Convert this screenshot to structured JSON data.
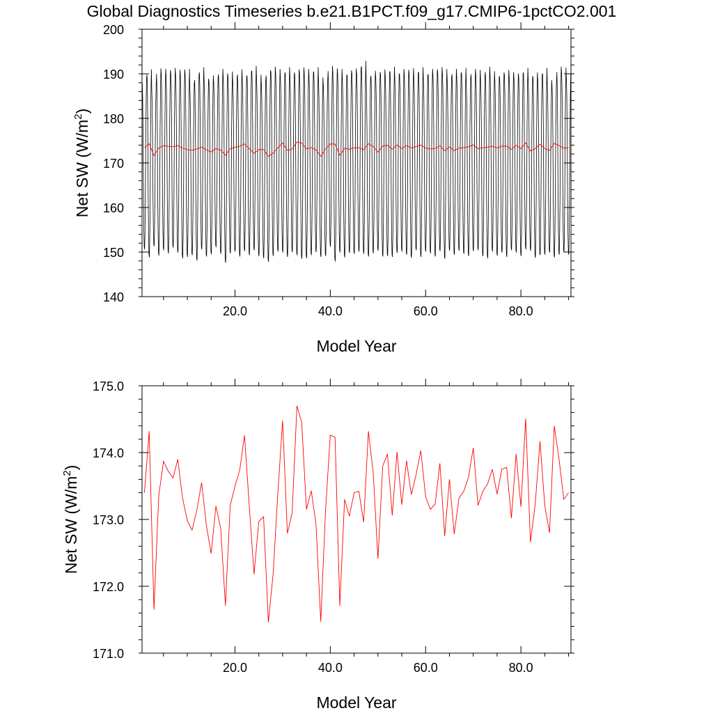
{
  "title": "Global Diagnostics Timeseries b.e21.B1PCT.f09_g17.CMIP6-1pctCO2.001",
  "colors": {
    "monthly": "#000000",
    "annual": "#ff0000",
    "axis": "#000000"
  },
  "chart_data": [
    {
      "type": "line",
      "xlabel": "Model Year",
      "ylabel": "Net SW (W/m",
      "ylabel_sup": "2",
      "ylabel_close": ")",
      "xlim": [
        0.5,
        90.5
      ],
      "ylim": [
        140,
        200
      ],
      "xticks": [
        20,
        40,
        60,
        80
      ],
      "xtick_labels": [
        "20.0",
        "40.0",
        "60.0",
        "80.0"
      ],
      "yticks": [
        140,
        150,
        160,
        170,
        180,
        190,
        200
      ],
      "ytick_labels": [
        "140",
        "150",
        "160",
        "170",
        "180",
        "190",
        "200"
      ],
      "grid": false,
      "series": [
        {
          "key": "monthly",
          "monthly_max_by_year": [
            189.2,
            191.0,
            187.5,
            191.2,
            191.1,
            190.8,
            191.3,
            190.9,
            191.0,
            191.1,
            187.8,
            189.8,
            191.5,
            188.9,
            189.6,
            189.2,
            191.1,
            190.1,
            190.5,
            189.2,
            191.0,
            189.6,
            190.6,
            191.8,
            189.8,
            188.7,
            190.8,
            191.6,
            191.1,
            190.0,
            191.5,
            190.3,
            191.0,
            191.4,
            191.1,
            190.5,
            191.5,
            189.2,
            188.5,
            191.8,
            191.2,
            191.1,
            189.8,
            190.8,
            191.2,
            191.2,
            192.9,
            189.3,
            190.7,
            190.4,
            191.0,
            190.5,
            191.6,
            190.0,
            191.1,
            190.9,
            191.3,
            190.3,
            191.5,
            189.7,
            191.1,
            191.0,
            191.5,
            191.1,
            189.3,
            191.1,
            190.3,
            191.3,
            189.0,
            191.1,
            190.9,
            189.6,
            191.6,
            190.6,
            189.5,
            190.3,
            190.9,
            190.4,
            190.1,
            190.3,
            191.3,
            189.5,
            190.3,
            189.8,
            191.3,
            188.6,
            188.1,
            191.6,
            191.4,
            189.9
          ],
          "monthly_min_by_year": [
            150.6,
            148.8,
            151.3,
            149.2,
            150.4,
            149.7,
            151.0,
            149.9,
            148.6,
            148.9,
            149.3,
            148.1,
            150.6,
            149.0,
            149.5,
            151.1,
            149.6,
            147.6,
            149.7,
            150.1,
            149.0,
            150.2,
            149.3,
            150.4,
            149.1,
            148.6,
            147.8,
            149.1,
            150.1,
            149.9,
            148.9,
            150.0,
            149.3,
            148.5,
            148.6,
            149.3,
            150.0,
            148.9,
            149.1,
            151.2,
            147.9,
            149.9,
            148.8,
            149.8,
            149.6,
            150.1,
            149.6,
            149.0,
            149.7,
            150.3,
            149.0,
            149.1,
            148.9,
            149.8,
            150.1,
            149.4,
            148.7,
            150.4,
            148.9,
            150.1,
            149.7,
            149.0,
            150.2,
            148.5,
            150.3,
            149.4,
            150.3,
            149.6,
            149.1,
            150.2,
            150.4,
            149.1,
            148.6,
            150.1,
            149.2,
            149.9,
            148.9,
            150.4,
            149.9,
            149.1,
            150.6,
            150.3,
            148.7,
            149.3,
            149.4,
            149.9,
            148.8,
            149.4,
            149.9,
            149.4
          ]
        },
        {
          "key": "annual",
          "ref": "annual_values"
        }
      ]
    },
    {
      "type": "line",
      "xlabel": "Model Year",
      "ylabel": "Net SW (W/m",
      "ylabel_sup": "2",
      "ylabel_close": ")",
      "xlim": [
        0.5,
        90.5
      ],
      "ylim": [
        171.0,
        175.0
      ],
      "xticks": [
        20,
        40,
        60,
        80
      ],
      "xtick_labels": [
        "20.0",
        "40.0",
        "60.0",
        "80.0"
      ],
      "yticks": [
        171.0,
        172.0,
        173.0,
        174.0,
        175.0
      ],
      "ytick_labels": [
        "171.0",
        "172.0",
        "173.0",
        "174.0",
        "175.0"
      ],
      "grid": false,
      "series": [
        {
          "key": "annual",
          "ref": "annual_values"
        }
      ]
    }
  ],
  "annual_values": {
    "x": [
      1,
      2,
      3,
      4,
      5,
      6,
      7,
      8,
      9,
      10,
      11,
      12,
      13,
      14,
      15,
      16,
      17,
      18,
      19,
      20,
      21,
      22,
      23,
      24,
      25,
      26,
      27,
      28,
      29,
      30,
      31,
      32,
      33,
      34,
      35,
      36,
      37,
      38,
      39,
      40,
      41,
      42,
      43,
      44,
      45,
      46,
      47,
      48,
      49,
      50,
      51,
      52,
      53,
      54,
      55,
      56,
      57,
      58,
      59,
      60,
      61,
      62,
      63,
      64,
      65,
      66,
      67,
      68,
      69,
      70,
      71,
      72,
      73,
      74,
      75,
      76,
      77,
      78,
      79,
      80,
      81,
      82,
      83,
      84,
      85,
      86,
      87,
      88,
      89,
      90
    ],
    "y": [
      173.4,
      174.32,
      171.65,
      173.35,
      173.87,
      173.72,
      173.62,
      173.9,
      173.32,
      172.98,
      172.84,
      173.14,
      173.55,
      172.91,
      172.49,
      173.2,
      172.87,
      171.71,
      173.21,
      173.5,
      173.74,
      174.26,
      173.2,
      172.18,
      172.97,
      173.04,
      171.46,
      172.18,
      173.4,
      174.48,
      172.79,
      173.1,
      174.7,
      174.45,
      173.15,
      173.43,
      172.93,
      171.47,
      173.13,
      174.26,
      174.23,
      171.71,
      173.3,
      173.05,
      173.4,
      173.42,
      172.96,
      174.32,
      173.7,
      172.41,
      173.8,
      173.98,
      173.06,
      174.01,
      173.22,
      173.88,
      173.37,
      173.67,
      174.03,
      173.34,
      173.15,
      173.23,
      173.84,
      172.75,
      173.6,
      172.78,
      173.32,
      173.42,
      173.63,
      174.07,
      173.21,
      173.42,
      173.53,
      173.75,
      173.38,
      173.75,
      173.78,
      173.02,
      173.98,
      173.19,
      174.51,
      172.66,
      173.23,
      174.17,
      173.21,
      172.8,
      174.4,
      173.9,
      173.3,
      173.4
    ]
  }
}
